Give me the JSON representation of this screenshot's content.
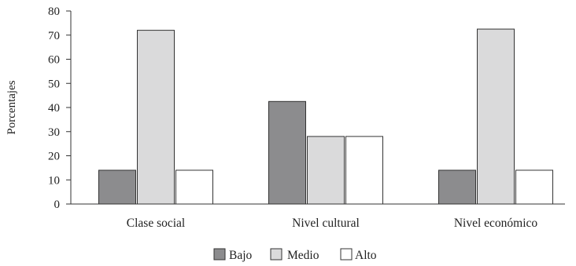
{
  "chart_data": {
    "type": "bar",
    "title": "",
    "xlabel": "",
    "ylabel": "Porcentajes",
    "ylim": [
      0,
      80
    ],
    "yticks": [
      0,
      10,
      20,
      30,
      40,
      50,
      60,
      70,
      80
    ],
    "categories": [
      "Clase social",
      "Nivel cultural",
      "Nivel económico"
    ],
    "series": [
      {
        "name": "Bajo",
        "color": "#8c8c8e",
        "values": [
          14,
          42.5,
          14
        ]
      },
      {
        "name": "Medio",
        "color": "#dadadb",
        "values": [
          72,
          28,
          72.5
        ]
      },
      {
        "name": "Alto",
        "color": "#ffffff",
        "values": [
          14,
          28,
          14
        ]
      }
    ],
    "grid": false,
    "legend_position": "bottom-center"
  }
}
